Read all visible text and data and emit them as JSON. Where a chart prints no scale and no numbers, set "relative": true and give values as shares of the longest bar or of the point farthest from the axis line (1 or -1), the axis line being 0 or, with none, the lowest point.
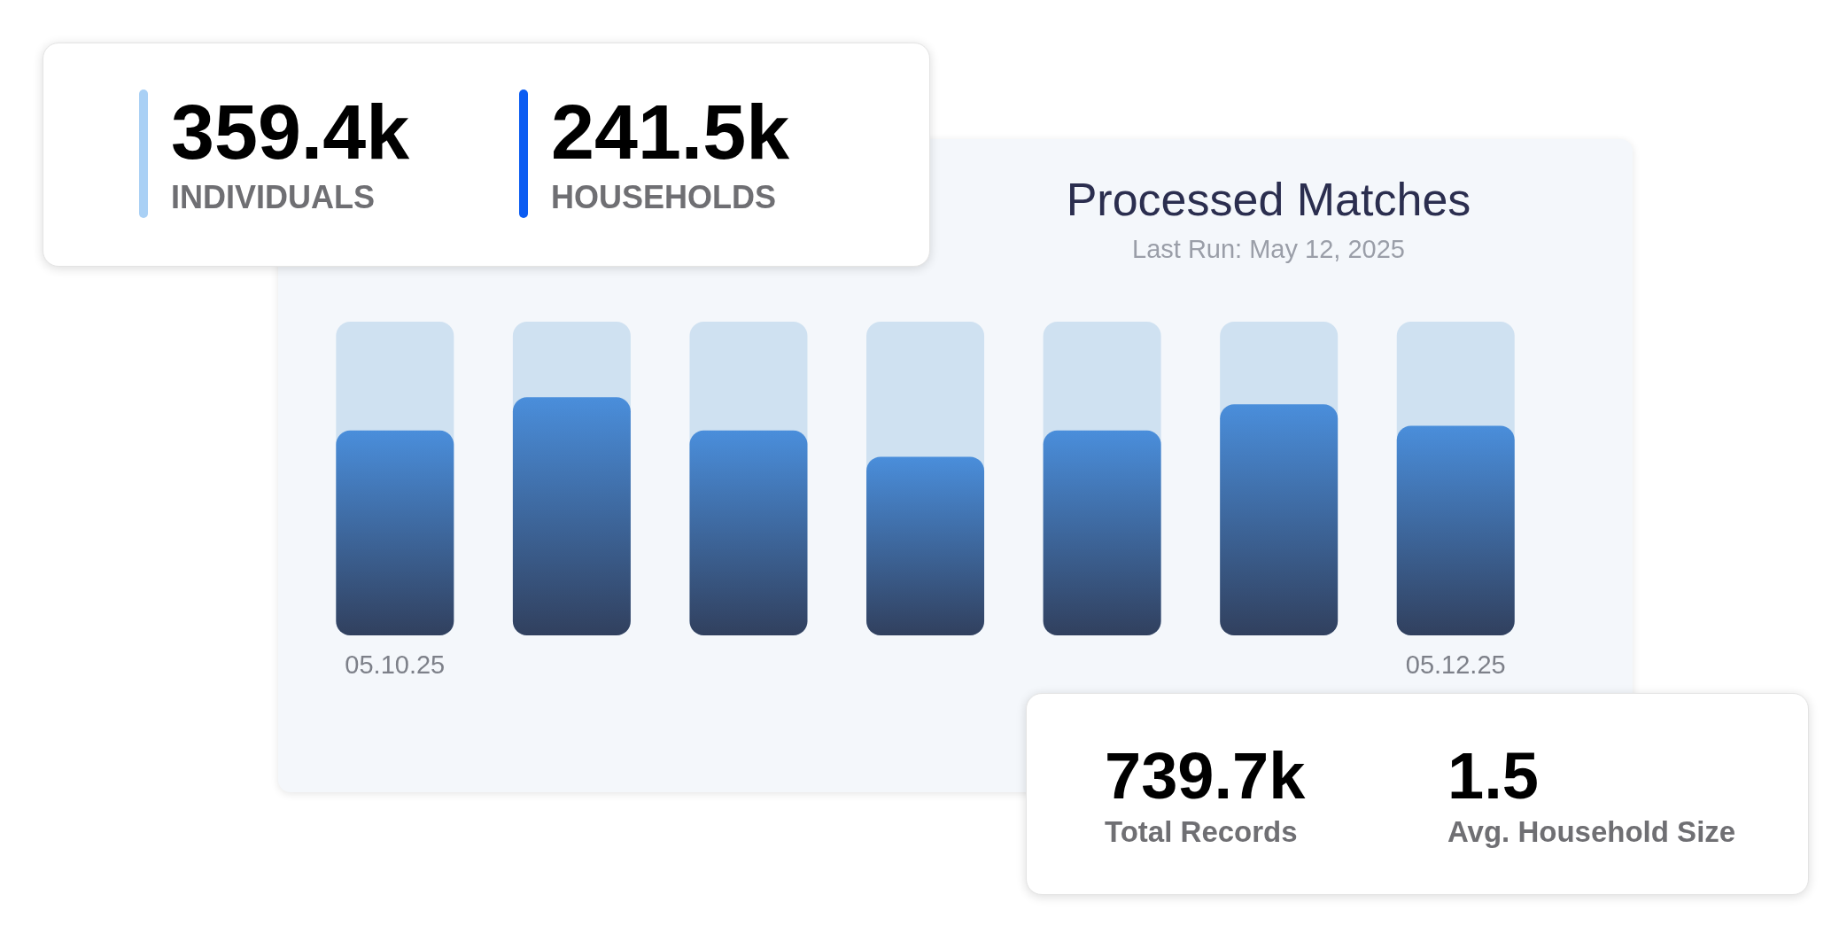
{
  "chart_data": [
    {
      "type": "bar",
      "title": "Processed Matches",
      "subtitle": "Last Run: May 12, 2025",
      "relative": true,
      "legend": false,
      "grid": false,
      "categories": [
        "05.10.25",
        null,
        null,
        null,
        null,
        null,
        "05.12.25"
      ],
      "series": [
        {
          "color": "#4a8edb",
          "values": [
            0.86,
            1,
            0.86,
            0.75,
            0.86,
            0.97,
            0.88
          ]
        }
      ]
    },
    {
      "type": "other",
      "categories": [
        "INDIVIDUALS",
        "HOUSEHOLDS"
      ],
      "value_labels": [
        "359.4k",
        "241.5k"
      ]
    },
    {
      "type": "other",
      "categories": [
        "Total Records",
        "Avg. Household Size"
      ],
      "value_labels": [
        "739.7k",
        "1.5"
      ]
    }
  ]
}
